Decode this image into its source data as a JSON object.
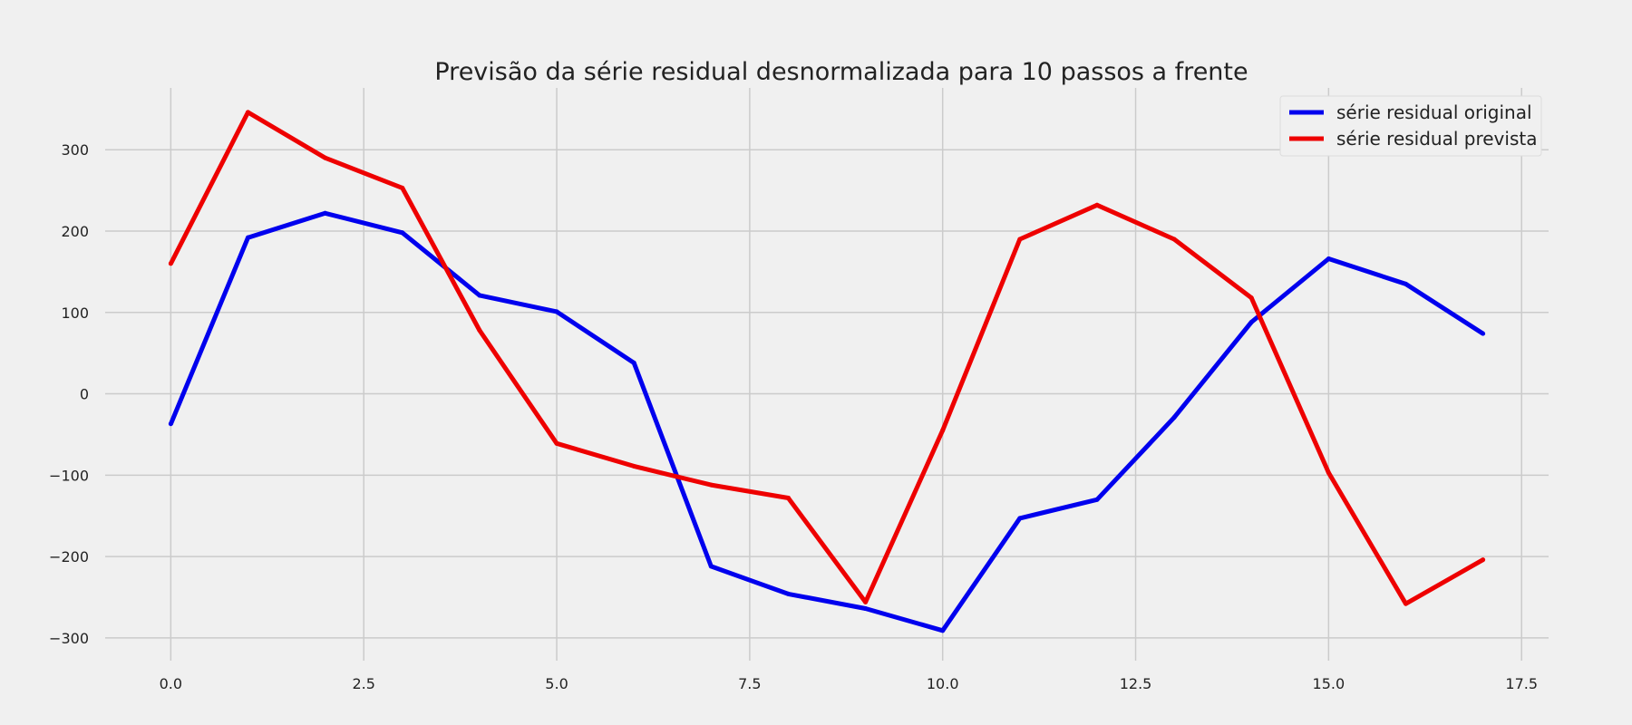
{
  "chart_data": {
    "type": "line",
    "title": "Previsão da série residual desnormalizada para 10 passos a frente",
    "xlabel": "",
    "ylabel": "",
    "xlim": [
      -0.85,
      17.85
    ],
    "ylim": [
      -328,
      376
    ],
    "x_ticks": [
      0.0,
      2.5,
      5.0,
      7.5,
      10.0,
      12.5,
      15.0,
      17.5
    ],
    "x_tick_labels": [
      "0.0",
      "2.5",
      "5.0",
      "7.5",
      "10.0",
      "12.5",
      "15.0",
      "17.5"
    ],
    "y_ticks": [
      -300,
      -200,
      -100,
      0,
      100,
      200,
      300
    ],
    "y_tick_labels": [
      "−300",
      "−200",
      "−100",
      "0",
      "100",
      "200",
      "300"
    ],
    "grid": true,
    "legend_position": "top-right",
    "x": [
      0,
      1,
      2,
      3,
      4,
      5,
      6,
      7,
      8,
      9,
      10,
      11,
      12,
      13,
      14,
      15,
      16,
      17
    ],
    "series": [
      {
        "name": "série residual original",
        "color": "#0000ee",
        "values": [
          -37,
          192,
          222,
          198,
          121,
          101,
          38,
          -212,
          -246,
          -264,
          -291,
          -153,
          -130,
          -29,
          88,
          166,
          135,
          74
        ]
      },
      {
        "name": "série residual prevista",
        "color": "#ee0000",
        "values": [
          160,
          346,
          290,
          253,
          78,
          -61,
          -89,
          -112,
          -128,
          -256,
          -45,
          190,
          232,
          190,
          118,
          -97,
          -258,
          -204
        ]
      }
    ]
  }
}
